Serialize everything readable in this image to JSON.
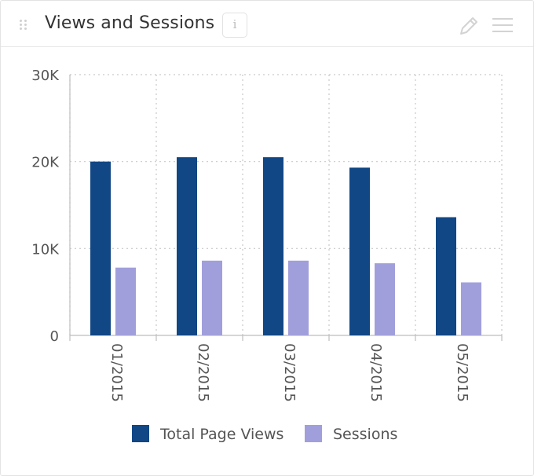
{
  "widget": {
    "title": "Views and Sessions",
    "info_glyph": "i",
    "icons": [
      "drag-handle-icon",
      "info-icon",
      "pencil-icon",
      "menu-icon"
    ]
  },
  "chart_data": {
    "type": "bar",
    "categories": [
      "01/2015",
      "02/2015",
      "03/2015",
      "04/2015",
      "05/2015"
    ],
    "series": [
      {
        "name": "Total Page Views",
        "color": "#124785",
        "values": [
          20000,
          20500,
          20500,
          19300,
          13600
        ]
      },
      {
        "name": "Sessions",
        "color": "#a19fdb",
        "values": [
          7800,
          8600,
          8600,
          8300,
          6100
        ]
      }
    ],
    "ylim": [
      0,
      30000
    ],
    "yticks": [
      0,
      10000,
      20000,
      30000
    ],
    "ytick_labels": [
      "0",
      "10K",
      "20K",
      "30K"
    ],
    "grid": true,
    "legend_position": "bottom"
  }
}
